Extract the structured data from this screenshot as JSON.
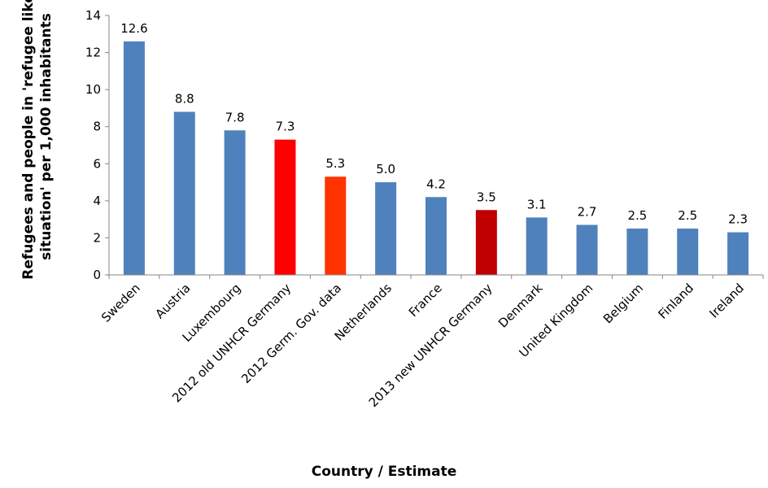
{
  "chart_data": {
    "type": "bar",
    "categories": [
      "Sweden",
      "Austria",
      "Luxembourg",
      "2012 old UNHCR Germany",
      "2012 Germ. Gov. data",
      "Netherlands",
      "France",
      "2013 new UNHCR Germany",
      "Denmark",
      "United Kingdom",
      "Belgium",
      "Finland",
      "Ireland"
    ],
    "values": [
      12.6,
      8.8,
      7.8,
      7.3,
      5.3,
      5.0,
      4.2,
      3.5,
      3.1,
      2.7,
      2.5,
      2.5,
      2.3
    ],
    "data_labels": [
      "12.6",
      "8.8",
      "7.8",
      "7.3",
      "5.3",
      "5.0",
      "4.2",
      "3.5",
      "3.1",
      "2.7",
      "2.5",
      "2.5",
      "2.3"
    ],
    "bar_colors": [
      "#4f81bd",
      "#4f81bd",
      "#4f81bd",
      "#ff0000",
      "#ff3300",
      "#4f81bd",
      "#4f81bd",
      "#c00000",
      "#4f81bd",
      "#4f81bd",
      "#4f81bd",
      "#4f81bd",
      "#4f81bd"
    ],
    "title": "",
    "xlabel": "Country / Estimate",
    "ylabel_lines": [
      "Refugees and people in 'refugee like",
      "situation' per 1,000 inhabitants"
    ],
    "ylim": [
      0,
      14
    ],
    "yticks": [
      "0",
      "2",
      "4",
      "6",
      "8",
      "10",
      "12",
      "14"
    ],
    "grid": false,
    "legend": "none"
  }
}
